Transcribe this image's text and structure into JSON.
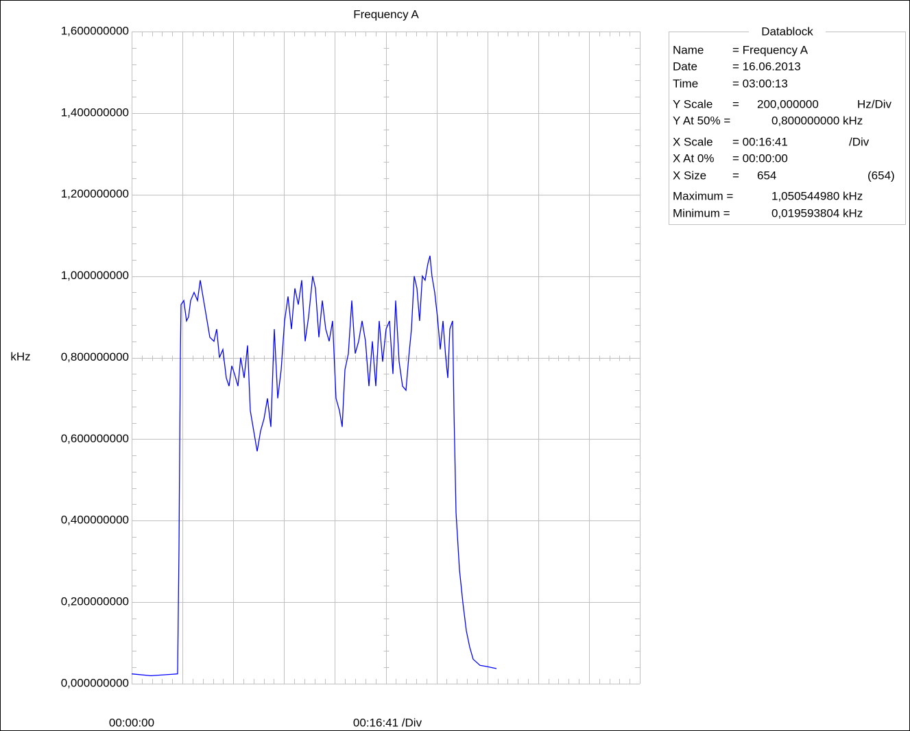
{
  "chart_data": {
    "type": "line",
    "title": "Frequency A",
    "y_label": "kHz",
    "x_scale_label": "00:16:41 /Div",
    "color": "#0000ff",
    "xlim": [
      0,
      10010
    ],
    "xticks": [
      {
        "value": 0,
        "label": "00:00:00"
      }
    ],
    "xgrid": [
      0,
      1001,
      2002,
      3003,
      4004,
      5005,
      6006,
      7007,
      8008,
      9009,
      10010
    ],
    "ylim": [
      0,
      1.6
    ],
    "yticks": [
      {
        "value": 0,
        "label": "0,000000000"
      },
      {
        "value": 0.2,
        "label": "0,200000000"
      },
      {
        "value": 0.4,
        "label": "0,400000000"
      },
      {
        "value": 0.6,
        "label": "0,600000000"
      },
      {
        "value": 0.8,
        "label": "0,800000000"
      },
      {
        "value": 1.0,
        "label": "1,000000000"
      },
      {
        "value": 1.2,
        "label": "1,200000000"
      },
      {
        "value": 1.4,
        "label": "1,400000000"
      },
      {
        "value": 1.6,
        "label": "1,600000000"
      }
    ],
    "grid": true,
    "x": [
      0,
      378,
      905,
      932,
      959,
      973,
      1027,
      1081,
      1121,
      1162,
      1229,
      1297,
      1351,
      1418,
      1486,
      1540,
      1621,
      1675,
      1729,
      1797,
      1864,
      1918,
      1972,
      2026,
      2094,
      2148,
      2215,
      2283,
      2337,
      2404,
      2472,
      2540,
      2607,
      2675,
      2742,
      2810,
      2877,
      2945,
      3012,
      3080,
      3147,
      3215,
      3282,
      3350,
      3418,
      3485,
      3566,
      3620,
      3688,
      3755,
      3823,
      3890,
      3958,
      4025,
      4093,
      4147,
      4201,
      4269,
      4336,
      4404,
      4471,
      4539,
      4606,
      4674,
      4741,
      4809,
      4876,
      4944,
      5012,
      5079,
      5147,
      5201,
      5268,
      5336,
      5403,
      5457,
      5511,
      5565,
      5619,
      5673,
      5727,
      5781,
      5835,
      5876,
      5916,
      5970,
      6024,
      6079,
      6133,
      6187,
      6227,
      6268,
      6322,
      6349,
      6389,
      6457,
      6524,
      6592,
      6659,
      6727,
      6862,
      6997,
      7186
    ],
    "values": [
      0.024,
      0.0196,
      0.024,
      0.33,
      0.8,
      0.93,
      0.94,
      0.89,
      0.9,
      0.94,
      0.96,
      0.94,
      0.99,
      0.94,
      0.89,
      0.85,
      0.84,
      0.87,
      0.8,
      0.82,
      0.75,
      0.73,
      0.78,
      0.76,
      0.73,
      0.8,
      0.75,
      0.83,
      0.67,
      0.62,
      0.57,
      0.62,
      0.65,
      0.7,
      0.63,
      0.87,
      0.7,
      0.77,
      0.89,
      0.95,
      0.87,
      0.97,
      0.93,
      0.99,
      0.84,
      0.9,
      1.0,
      0.97,
      0.85,
      0.94,
      0.87,
      0.84,
      0.89,
      0.7,
      0.67,
      0.63,
      0.77,
      0.81,
      0.94,
      0.81,
      0.84,
      0.89,
      0.84,
      0.73,
      0.84,
      0.73,
      0.89,
      0.79,
      0.87,
      0.89,
      0.76,
      0.94,
      0.79,
      0.73,
      0.72,
      0.8,
      0.87,
      1.0,
      0.97,
      0.89,
      1.0,
      0.99,
      1.03,
      1.05,
      1.0,
      0.96,
      0.9,
      0.82,
      0.89,
      0.8,
      0.75,
      0.87,
      0.89,
      0.67,
      0.42,
      0.28,
      0.2,
      0.13,
      0.09,
      0.06,
      0.045,
      0.042,
      0.037
    ]
  },
  "datablock": {
    "title": "Datablock",
    "rows": [
      [
        "Name",
        "= Frequency A"
      ],
      [
        "Date",
        "= 16.06.2013"
      ],
      [
        "Time",
        "= 03:00:13"
      ],
      [
        "Y Scale",
        "=",
        "200,000000",
        "Hz/Div"
      ],
      [
        "Y At 50% =",
        "0,800000000 kHz"
      ],
      [
        "X Scale",
        "= 00:16:41",
        "/Div"
      ],
      [
        "X At 0%",
        "= 00:00:00"
      ],
      [
        "X Size",
        "=",
        "654",
        "(654)"
      ],
      [
        "Maximum =",
        "1,050544980 kHz"
      ],
      [
        "Minimum =",
        "0,019593804 kHz"
      ]
    ]
  }
}
